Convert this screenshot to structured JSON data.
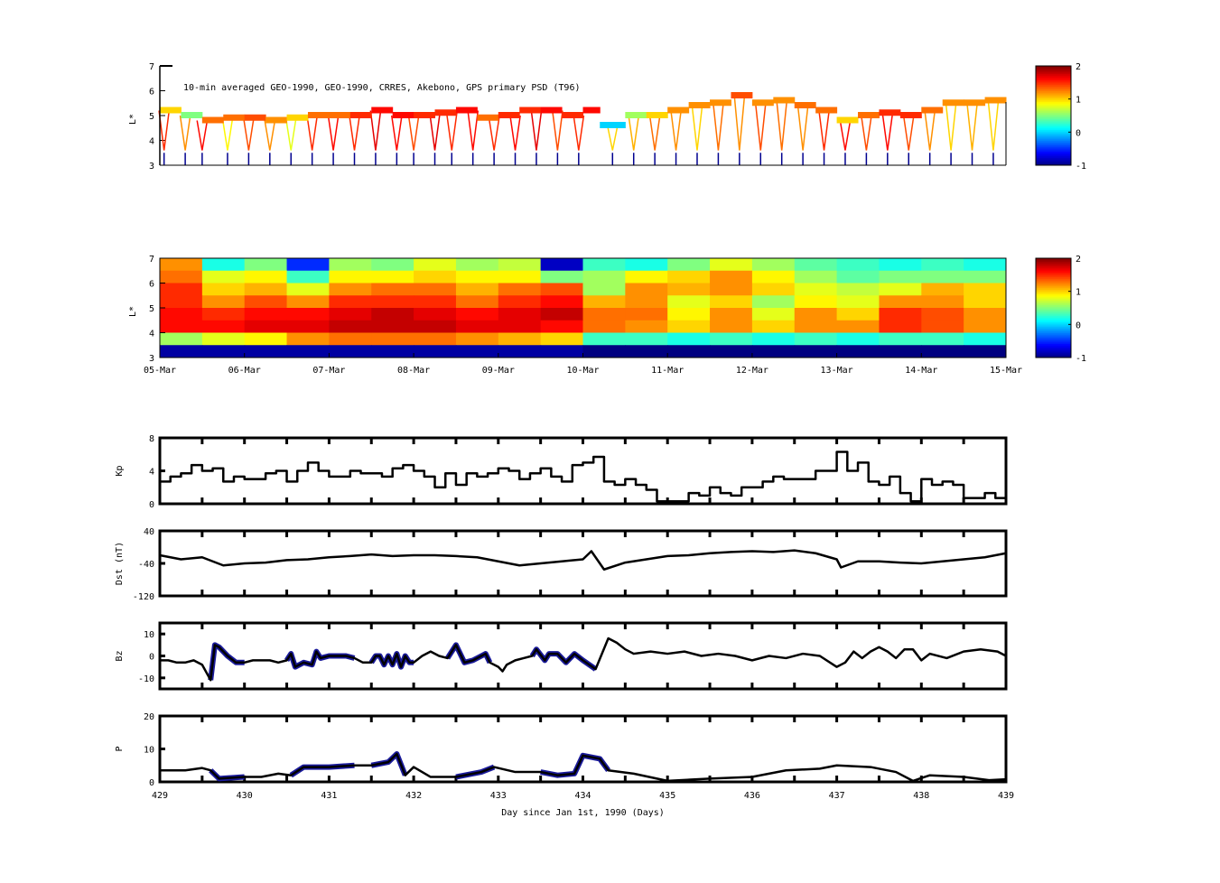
{
  "chart_data": [
    {
      "type": "heatmap",
      "id": "psd-observed",
      "title": "10-min averaged GEO-1990, GEO-1990, CRRES, Akebono, GPS  primary PSD (T96)",
      "ylabel": "L*",
      "ylim": [
        3,
        7
      ],
      "yticks": [
        "3",
        "4",
        "5",
        "6",
        "7"
      ],
      "xlim": [
        429,
        439
      ],
      "colorbar": {
        "range": [
          -1,
          2
        ],
        "ticks": [
          "-1",
          "0",
          "1",
          "2"
        ],
        "colormap": "jet"
      },
      "band": [
        [
          429.0,
          5.2,
          1.0
        ],
        [
          429.25,
          5.0,
          0.5
        ],
        [
          429.5,
          4.8,
          1.3
        ],
        [
          429.75,
          4.9,
          1.3
        ],
        [
          430.0,
          4.9,
          1.4
        ],
        [
          430.25,
          4.8,
          1.2
        ],
        [
          430.5,
          4.9,
          1.0
        ],
        [
          430.75,
          5.0,
          1.3
        ],
        [
          431.0,
          5.0,
          1.3
        ],
        [
          431.25,
          5.0,
          1.5
        ],
        [
          431.5,
          5.2,
          1.6
        ],
        [
          431.75,
          5.0,
          1.6
        ],
        [
          432.0,
          5.0,
          1.5
        ],
        [
          432.25,
          5.1,
          1.5
        ],
        [
          432.5,
          5.2,
          1.6
        ],
        [
          432.75,
          4.9,
          1.3
        ],
        [
          433.0,
          5.0,
          1.5
        ],
        [
          433.25,
          5.2,
          1.5
        ],
        [
          433.5,
          5.2,
          1.6
        ],
        [
          433.75,
          5.0,
          1.5
        ],
        [
          434.0,
          5.2,
          1.6
        ],
        [
          434.2,
          4.6,
          0.0
        ],
        [
          434.5,
          5.0,
          0.6
        ],
        [
          434.75,
          5.0,
          1.0
        ],
        [
          435.0,
          5.2,
          1.2
        ],
        [
          435.25,
          5.4,
          1.2
        ],
        [
          435.5,
          5.5,
          1.2
        ],
        [
          435.75,
          5.8,
          1.4
        ],
        [
          436.0,
          5.5,
          1.2
        ],
        [
          436.25,
          5.6,
          1.2
        ],
        [
          436.5,
          5.4,
          1.3
        ],
        [
          436.75,
          5.2,
          1.3
        ],
        [
          437.0,
          4.8,
          1.0
        ],
        [
          437.25,
          5.0,
          1.3
        ],
        [
          437.5,
          5.1,
          1.5
        ],
        [
          437.75,
          5.0,
          1.5
        ],
        [
          438.0,
          5.2,
          1.3
        ],
        [
          438.25,
          5.5,
          1.2
        ],
        [
          438.5,
          5.5,
          1.2
        ],
        [
          438.75,
          5.6,
          1.2
        ],
        [
          439.0,
          5.6,
          1.2
        ]
      ],
      "passes": [
        [
          429.05,
          1.5
        ],
        [
          429.3,
          1.2
        ],
        [
          429.5,
          1.6
        ],
        [
          429.8,
          0.9
        ],
        [
          430.05,
          1.4
        ],
        [
          430.3,
          1.2
        ],
        [
          430.55,
          0.8
        ],
        [
          430.8,
          1.5
        ],
        [
          431.05,
          1.6
        ],
        [
          431.3,
          1.5
        ],
        [
          431.55,
          1.7
        ],
        [
          431.8,
          1.6
        ],
        [
          432.0,
          1.4
        ],
        [
          432.25,
          1.7
        ],
        [
          432.45,
          1.5
        ],
        [
          432.7,
          1.6
        ],
        [
          432.95,
          1.5
        ],
        [
          433.2,
          1.6
        ],
        [
          433.45,
          1.7
        ],
        [
          433.7,
          1.4
        ],
        [
          433.95,
          1.5
        ],
        [
          434.35,
          1.0
        ],
        [
          434.6,
          1.1
        ],
        [
          434.85,
          1.3
        ],
        [
          435.1,
          1.2
        ],
        [
          435.35,
          1.0
        ],
        [
          435.6,
          1.3
        ],
        [
          435.85,
          1.2
        ],
        [
          436.1,
          1.4
        ],
        [
          436.35,
          1.3
        ],
        [
          436.6,
          1.2
        ],
        [
          436.85,
          1.5
        ],
        [
          437.1,
          1.6
        ],
        [
          437.35,
          1.4
        ],
        [
          437.6,
          1.6
        ],
        [
          437.85,
          1.4
        ],
        [
          438.1,
          1.2
        ],
        [
          438.35,
          1.0
        ],
        [
          438.6,
          1.1
        ],
        [
          438.85,
          1.0
        ]
      ]
    },
    {
      "type": "heatmap",
      "id": "psd-reanalysis",
      "ylabel": "L*",
      "ylim": [
        3,
        7
      ],
      "yticks": [
        "3",
        "4",
        "5",
        "6",
        "7"
      ],
      "xlim": [
        429,
        439
      ],
      "xticklabels": [
        "05-Mar",
        "06-Mar",
        "07-Mar",
        "08-Mar",
        "09-Mar",
        "10-Mar",
        "11-Mar",
        "12-Mar",
        "13-Mar",
        "14-Mar",
        "15-Mar"
      ],
      "colorbar": {
        "range": [
          -1,
          2
        ],
        "ticks": [
          "-1",
          "0",
          "1",
          "2"
        ],
        "colormap": "jet"
      },
      "L_centers": [
        6.75,
        6.25,
        5.75,
        5.25,
        4.75,
        4.25,
        3.75,
        3.25
      ],
      "t_starts": [
        429.0,
        429.5,
        430.0,
        430.5,
        431.0,
        431.5,
        432.0,
        432.5,
        433.0,
        433.5,
        434.0,
        434.5,
        435.0,
        435.5,
        436.0,
        436.5,
        437.0,
        437.5,
        438.0,
        438.5
      ],
      "values": [
        [
          1.2,
          0.2,
          0.5,
          -0.5,
          0.6,
          0.5,
          0.8,
          0.6,
          0.7,
          -0.8,
          0.3,
          0.2,
          0.5,
          0.8,
          0.6,
          0.4,
          0.3,
          0.2,
          0.3,
          0.2
        ],
        [
          1.3,
          0.8,
          0.9,
          0.3,
          0.9,
          0.9,
          1.0,
          0.9,
          0.9,
          0.5,
          0.6,
          0.9,
          1.0,
          1.2,
          0.9,
          0.6,
          0.4,
          0.5,
          0.5,
          0.5
        ],
        [
          1.5,
          1.0,
          1.1,
          0.8,
          1.2,
          1.3,
          1.3,
          1.1,
          1.3,
          1.4,
          0.6,
          1.2,
          1.1,
          1.2,
          1.0,
          0.8,
          0.7,
          0.8,
          1.1,
          1.0
        ],
        [
          1.5,
          1.2,
          1.4,
          1.2,
          1.5,
          1.5,
          1.5,
          1.3,
          1.5,
          1.6,
          1.1,
          1.2,
          0.8,
          1.0,
          0.6,
          0.9,
          0.8,
          1.2,
          1.2,
          1.0
        ],
        [
          1.6,
          1.5,
          1.6,
          1.6,
          1.7,
          1.8,
          1.7,
          1.6,
          1.7,
          1.8,
          1.3,
          1.3,
          0.9,
          1.2,
          0.8,
          1.2,
          1.0,
          1.5,
          1.4,
          1.2
        ],
        [
          1.6,
          1.6,
          1.7,
          1.7,
          1.8,
          1.8,
          1.8,
          1.7,
          1.7,
          1.6,
          1.3,
          1.2,
          1.0,
          1.2,
          1.0,
          1.2,
          1.2,
          1.5,
          1.4,
          1.2
        ],
        [
          0.6,
          0.8,
          0.9,
          1.2,
          1.3,
          1.3,
          1.3,
          1.2,
          1.1,
          1.0,
          0.3,
          0.3,
          0.2,
          0.3,
          0.2,
          0.3,
          0.2,
          0.3,
          0.3,
          0.2
        ],
        [
          -0.9,
          -0.9,
          -0.9,
          -0.9,
          -0.9,
          -0.9,
          -0.9,
          -0.9,
          -0.9,
          -0.9,
          -1,
          -1,
          -1,
          -1,
          -1,
          -1,
          -1,
          -1,
          -1,
          -1
        ]
      ]
    },
    {
      "type": "line",
      "id": "kp",
      "ylabel": "Kp",
      "ylim": [
        0,
        8
      ],
      "yticks": [
        "0",
        "4",
        "8"
      ],
      "xlim": [
        429,
        439
      ],
      "step": true,
      "x_start": 429,
      "x_step": 0.125,
      "values": [
        2.7,
        3.3,
        3.7,
        4.7,
        4.0,
        4.3,
        2.7,
        3.3,
        3.0,
        3.0,
        3.7,
        4.0,
        2.7,
        4.0,
        5.0,
        4.0,
        3.3,
        3.3,
        4.0,
        3.7,
        3.7,
        3.3,
        4.3,
        4.7,
        4.0,
        3.3,
        2.0,
        3.7,
        2.3,
        3.7,
        3.3,
        3.7,
        4.3,
        4.0,
        3.0,
        3.7,
        4.3,
        3.3,
        2.7,
        4.7,
        5.0,
        5.7,
        2.7,
        2.3,
        3.0,
        2.3,
        1.7,
        0.3,
        0.3,
        0.3,
        1.3,
        1.0,
        2.0,
        1.3,
        1.0,
        2.0,
        2.0,
        2.7,
        3.3,
        3.0,
        3.0,
        3.0,
        4.0,
        4.0,
        6.3,
        4.0,
        5.0,
        2.7,
        2.3,
        3.3,
        1.3,
        0.3,
        3.0,
        2.3,
        2.7,
        2.3,
        0.7,
        0.7,
        1.3,
        0.7
      ]
    },
    {
      "type": "line",
      "id": "dst",
      "ylabel": "Dst (nT)",
      "ylim": [
        -120,
        40
      ],
      "yticks": [
        "-120",
        "-40",
        "40"
      ],
      "xlim": [
        429,
        439
      ],
      "x": [
        429.0,
        429.25,
        429.5,
        429.75,
        430.0,
        430.25,
        430.5,
        430.75,
        431.0,
        431.25,
        431.5,
        431.75,
        432.0,
        432.25,
        432.5,
        432.75,
        433.0,
        433.25,
        433.5,
        433.75,
        434.0,
        434.1,
        434.25,
        434.5,
        434.75,
        435.0,
        435.25,
        435.5,
        435.75,
        436.0,
        436.25,
        436.5,
        436.75,
        437.0,
        437.05,
        437.25,
        437.5,
        437.75,
        438.0,
        438.25,
        438.5,
        438.75,
        439.0
      ],
      "y": [
        -20,
        -30,
        -25,
        -45,
        -40,
        -38,
        -32,
        -30,
        -25,
        -22,
        -18,
        -22,
        -20,
        -20,
        -22,
        -25,
        -35,
        -45,
        -40,
        -35,
        -30,
        -10,
        -55,
        -38,
        -30,
        -22,
        -20,
        -15,
        -12,
        -10,
        -12,
        -8,
        -15,
        -30,
        -50,
        -35,
        -35,
        -38,
        -40,
        -35,
        -30,
        -25,
        -15
      ]
    },
    {
      "type": "line",
      "id": "bz",
      "ylabel": "Bz",
      "ylim": [
        -15,
        15
      ],
      "yticks": [
        "-10",
        "0",
        "10"
      ],
      "xlim": [
        429,
        439
      ],
      "highlight_color": "#1a1a9a",
      "highlight_ranges": [
        [
          429.6,
          430.0
        ],
        [
          430.5,
          431.3
        ],
        [
          431.5,
          432.0
        ],
        [
          432.4,
          432.9
        ],
        [
          433.4,
          434.2
        ]
      ],
      "x": [
        429.0,
        429.1,
        429.2,
        429.3,
        429.4,
        429.5,
        429.6,
        429.65,
        429.7,
        429.8,
        429.9,
        430.0,
        430.1,
        430.2,
        430.3,
        430.4,
        430.5,
        430.55,
        430.6,
        430.7,
        430.8,
        430.85,
        430.9,
        431.0,
        431.1,
        431.2,
        431.3,
        431.4,
        431.5,
        431.55,
        431.6,
        431.65,
        431.7,
        431.75,
        431.8,
        431.85,
        431.9,
        431.95,
        432.0,
        432.1,
        432.2,
        432.3,
        432.4,
        432.5,
        432.6,
        432.7,
        432.8,
        432.85,
        432.9,
        433.0,
        433.05,
        433.1,
        433.2,
        433.3,
        433.4,
        433.45,
        433.55,
        433.6,
        433.7,
        433.8,
        433.9,
        434.0,
        434.15,
        434.3,
        434.4,
        434.5,
        434.6,
        434.8,
        435.0,
        435.2,
        435.4,
        435.6,
        435.8,
        436.0,
        436.2,
        436.4,
        436.6,
        436.8,
        437.0,
        437.1,
        437.2,
        437.3,
        437.4,
        437.5,
        437.6,
        437.7,
        437.8,
        437.9,
        438.0,
        438.1,
        438.3,
        438.5,
        438.7,
        438.9,
        439.0
      ],
      "y": [
        -2,
        -2,
        -3,
        -3,
        -2,
        -4,
        -11,
        5,
        4,
        0,
        -3,
        -3,
        -2,
        -2,
        -2,
        -3,
        -2,
        1,
        -5,
        -3,
        -4,
        2,
        -1,
        0,
        0,
        0,
        -1,
        -3,
        -3,
        0,
        0,
        -4,
        0,
        -4,
        1,
        -5,
        0,
        -3,
        -3,
        0,
        2,
        0,
        -1,
        5,
        -3,
        -2,
        0,
        1,
        -3,
        -5,
        -7,
        -4,
        -2,
        -1,
        0,
        3,
        -2,
        1,
        1,
        -3,
        1,
        -2,
        -6,
        8,
        6,
        3,
        1,
        2,
        1,
        2,
        0,
        1,
        0,
        -2,
        0,
        -1,
        1,
        0,
        -5,
        -3,
        2,
        -1,
        2,
        4,
        2,
        -1,
        3,
        3,
        -2,
        1,
        -1,
        2,
        3,
        2,
        0
      ]
    },
    {
      "type": "line",
      "id": "p",
      "ylabel": "P",
      "ylim": [
        0,
        20
      ],
      "yticks": [
        "0",
        "10",
        "20"
      ],
      "xlim": [
        429,
        439
      ],
      "xticks": [
        "429",
        "430",
        "431",
        "432",
        "433",
        "434",
        "435",
        "436",
        "437",
        "438",
        "439"
      ],
      "xlabel": "Day since Jan 1st, 1990 (Days)",
      "highlight_color": "#1a1a9a",
      "highlight_ranges": [
        [
          429.6,
          430.0
        ],
        [
          430.55,
          431.3
        ],
        [
          431.5,
          431.9
        ],
        [
          432.4,
          433.0
        ],
        [
          433.4,
          434.3
        ]
      ],
      "x": [
        429.0,
        429.3,
        429.5,
        429.6,
        429.7,
        430.0,
        430.2,
        430.4,
        430.55,
        430.7,
        431.0,
        431.3,
        431.5,
        431.7,
        431.8,
        431.9,
        432.0,
        432.2,
        432.5,
        432.8,
        432.95,
        433.2,
        433.5,
        433.7,
        433.9,
        434.0,
        434.2,
        434.3,
        434.6,
        435.0,
        435.5,
        436.0,
        436.4,
        436.8,
        437.0,
        437.4,
        437.7,
        437.9,
        438.1,
        438.5,
        438.8,
        439.0
      ],
      "y": [
        3.5,
        3.5,
        4.2,
        3.5,
        1,
        1.5,
        1.5,
        2.5,
        2,
        4.5,
        4.5,
        5,
        5,
        6,
        8.5,
        2,
        4.5,
        1.5,
        1.5,
        3,
        4.5,
        3,
        3,
        2,
        2.5,
        8,
        7,
        3.5,
        2.5,
        0.3,
        1,
        1.5,
        3.5,
        4,
        5,
        4.5,
        3,
        0.3,
        2,
        1.5,
        0.5,
        0.8
      ]
    }
  ]
}
